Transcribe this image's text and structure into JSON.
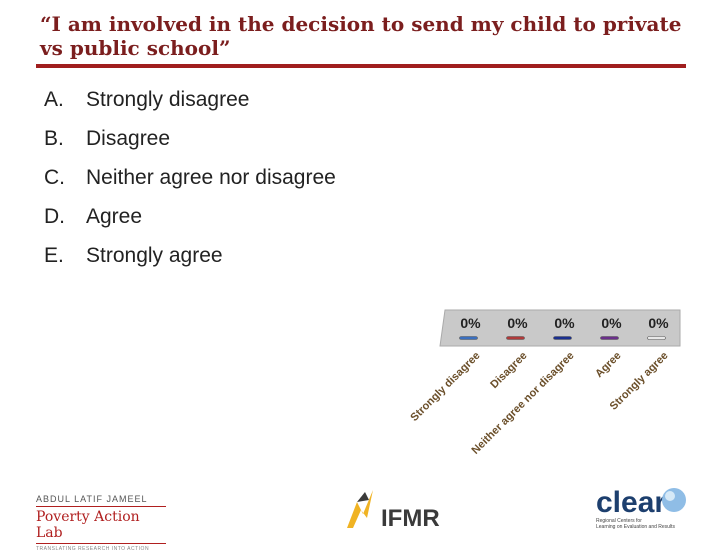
{
  "slide": {
    "title": "“I am involved in the decision to send my child to private vs public school”"
  },
  "options": [
    {
      "letter": "A.",
      "text": "Strongly disagree"
    },
    {
      "letter": "B.",
      "text": "Disagree"
    },
    {
      "letter": "C.",
      "text": "Neither agree nor disagree"
    },
    {
      "letter": "D.",
      "text": "Agree"
    },
    {
      "letter": "E.",
      "text": "Strongly agree"
    }
  ],
  "chart_data": {
    "type": "bar",
    "categories": [
      "Strongly disagree",
      "Disagree",
      "Neither agree nor disagree",
      "Agree",
      "Strongly agree"
    ],
    "values": [
      0,
      0,
      0,
      0,
      0
    ],
    "data_labels": [
      "0%",
      "0%",
      "0%",
      "0%",
      "0%"
    ],
    "unit": "%",
    "ylim": [
      0,
      100
    ],
    "colors": [
      "#3a6fbf",
      "#b03a3a",
      "#1a2f8f",
      "#6a2f8a",
      "#e8e8e8"
    ],
    "background": "#c9c9c9"
  },
  "logos": {
    "jpal": {
      "line1": "ABDUL LATIF JAMEEL",
      "line2": "Poverty Action Lab",
      "line3": "TRANSLATING RESEARCH INTO ACTION"
    },
    "ifmr": {
      "text": "IFMR"
    },
    "clear": {
      "text": "clear",
      "sub1": "Regional Centers for",
      "sub2": "Learning on Evaluation and Results"
    }
  }
}
